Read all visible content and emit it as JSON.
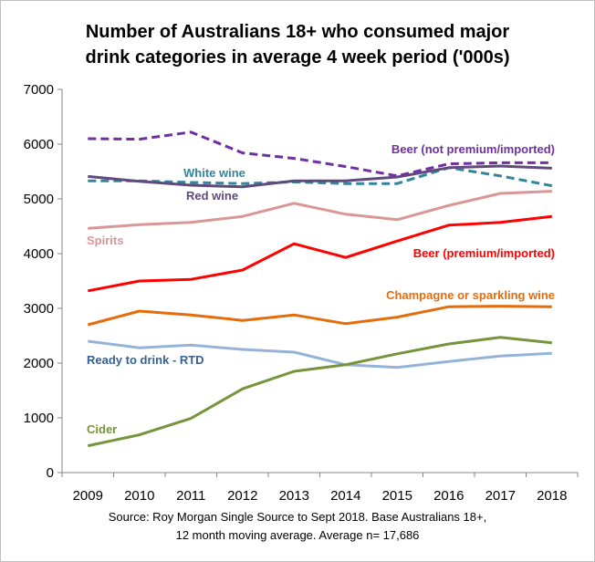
{
  "chart_data": {
    "type": "line",
    "title_lines": [
      "Number of Australians 18+ who consumed major",
      "drink categories in average 4 week period ('000s)"
    ],
    "source_lines": [
      "Source: Roy Morgan Single Source to Sept 2018. Base Australians 18+,",
      "12 month moving average. Average n= 17,686"
    ],
    "categories": [
      "2009",
      "2010",
      "2011",
      "2012",
      "2013",
      "2014",
      "2015",
      "2016",
      "2017",
      "2018"
    ],
    "ylim": [
      0,
      7000
    ],
    "yticks": [
      "0",
      "1000",
      "2000",
      "3000",
      "4000",
      "5000",
      "6000",
      "7000"
    ],
    "grid": false,
    "legend": "inline labels",
    "series": [
      {
        "name": "Beer (not premium/imported)",
        "color": "#7030A0",
        "label_color": "#7030A0",
        "dashed": true,
        "values": [
          6100,
          6090,
          6220,
          5840,
          5740,
          5590,
          5420,
          5640,
          5660,
          5660
        ]
      },
      {
        "name": "Red wine",
        "color": "#604A7B",
        "label_color": "#604A7B",
        "dashed": false,
        "values": [
          5410,
          5320,
          5250,
          5220,
          5330,
          5330,
          5400,
          5570,
          5600,
          5560
        ]
      },
      {
        "name": "White wine",
        "color": "#31859C",
        "label_color": "#31859C",
        "dashed": true,
        "values": [
          5330,
          5330,
          5300,
          5280,
          5310,
          5280,
          5280,
          5570,
          5420,
          5240
        ]
      },
      {
        "name": "Spirits",
        "color": "#D99694",
        "label_color": "#D99694",
        "dashed": false,
        "values": [
          4460,
          4530,
          4570,
          4680,
          4920,
          4720,
          4620,
          4880,
          5100,
          5140
        ]
      },
      {
        "name": "Beer (premium/imported)",
        "color": "#FF0000",
        "label_color": "#FF0000",
        "dashed": false,
        "values": [
          3320,
          3500,
          3530,
          3700,
          4180,
          3930,
          4230,
          4520,
          4570,
          4680
        ]
      },
      {
        "name": "Champagne or sparkling wine",
        "color": "#E46C0A",
        "label_color": "#E46C0A",
        "dashed": false,
        "values": [
          2700,
          2950,
          2880,
          2780,
          2880,
          2720,
          2840,
          3030,
          3040,
          3030
        ]
      },
      {
        "name": "Ready to drink - RTD",
        "color": "#95B3D7",
        "label_color": "#366092",
        "dashed": false,
        "values": [
          2400,
          2280,
          2330,
          2250,
          2200,
          1970,
          1920,
          2030,
          2130,
          2180
        ]
      },
      {
        "name": "Cider",
        "color": "#77933C",
        "label_color": "#77933C",
        "dashed": false,
        "values": [
          490,
          690,
          990,
          1530,
          1850,
          1970,
          2170,
          2350,
          2470,
          2370
        ]
      }
    ]
  }
}
